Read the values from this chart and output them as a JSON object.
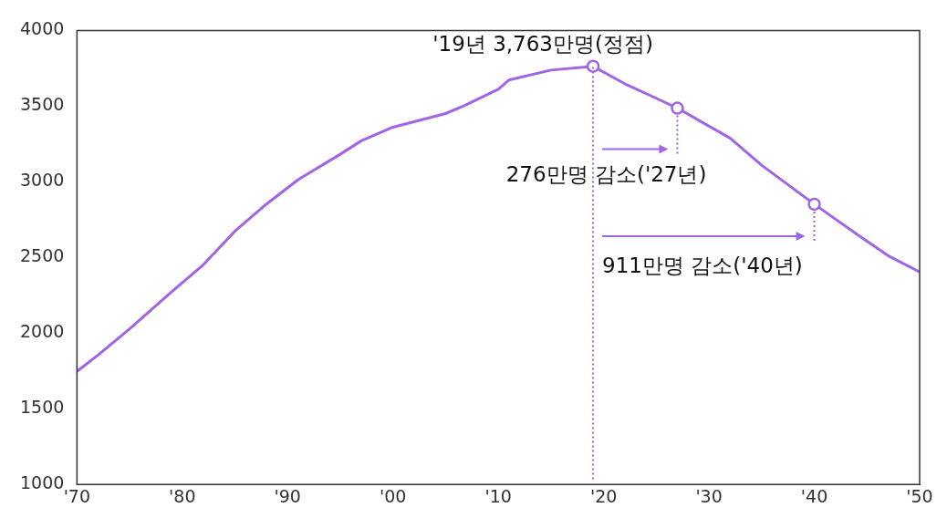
{
  "chart_data": {
    "type": "line",
    "xlim": [
      1970,
      2050
    ],
    "xticks": [
      {
        "value": 1970,
        "label": "'70"
      },
      {
        "value": 1980,
        "label": "'80"
      },
      {
        "value": 1990,
        "label": "'90"
      },
      {
        "value": 2000,
        "label": "'00"
      },
      {
        "value": 2010,
        "label": "'10"
      },
      {
        "value": 2020,
        "label": "'20"
      },
      {
        "value": 2030,
        "label": "'30"
      },
      {
        "value": 2040,
        "label": "'40"
      },
      {
        "value": 2050,
        "label": "'50"
      }
    ],
    "ylim": [
      1000,
      4000
    ],
    "yticks": [
      1000,
      1500,
      2000,
      2500,
      3000,
      3500,
      4000
    ],
    "grid": false,
    "legend": false,
    "series": [
      {
        "color": "#a064e6",
        "marker": "none",
        "x": [
          1970,
          1972,
          1975,
          1979,
          1982,
          1985,
          1988,
          1991,
          1995,
          1997,
          2000,
          2005,
          2007,
          2010,
          2011,
          2015,
          2019,
          2022,
          2025,
          2027,
          2032,
          2035,
          2040,
          2044,
          2047,
          2050
        ],
        "values": [
          1747,
          1855,
          2028,
          2273,
          2452,
          2674,
          2853,
          3014,
          3182,
          3271,
          3361,
          3451,
          3510,
          3612,
          3672,
          3738,
          3763,
          3648,
          3552,
          3487,
          3289,
          3110,
          2852,
          2656,
          2512,
          2405
        ]
      },
      {
        "type": "scatter",
        "color": "#a064e6",
        "marker": "circle",
        "x": [
          2019,
          2027,
          2040
        ],
        "values": [
          3763,
          3487,
          2852
        ]
      }
    ],
    "ref_lines": [
      {
        "axis": "x",
        "value": 2019,
        "color": "#a064e6",
        "line_style": "dotted"
      }
    ],
    "annotations": [
      {
        "text": "'19년 3,763만명(정점)",
        "x": 2019,
        "y": 3763
      },
      {
        "text": "276만명 감소('27년)",
        "x": 2027,
        "y": 3487
      },
      {
        "text": "911만명 감소('40년)",
        "x": 2040,
        "y": 2852
      }
    ]
  }
}
